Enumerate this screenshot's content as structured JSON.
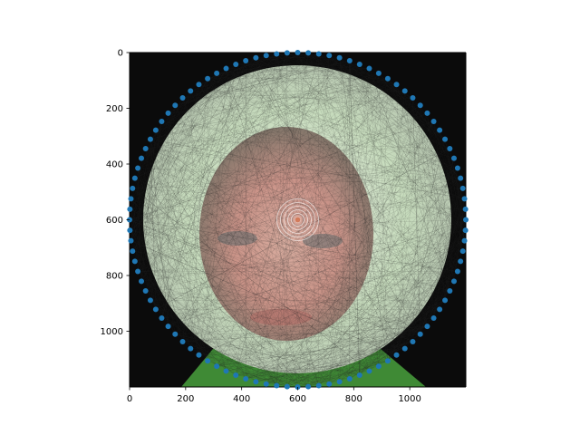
{
  "chart_data": {
    "type": "scatter",
    "title": "",
    "xlabel": "",
    "ylabel": "",
    "xlim": [
      0,
      1200
    ],
    "ylim": [
      1200,
      0
    ],
    "y_inverted": true,
    "grid": false,
    "xticks": [
      0,
      200,
      400,
      600,
      800,
      1000
    ],
    "yticks": [
      0,
      200,
      400,
      600,
      800,
      1000
    ],
    "background": "photograph of a face overlaid with a dense string-art thread mesh",
    "circle": {
      "center": [
        600,
        600
      ],
      "radius": 600
    },
    "center_point": [
      600,
      600
    ],
    "pin_count": 100,
    "marker_color": "#1f77b4",
    "thread_color": "#2b2b2b",
    "series": [
      {
        "kind": "pins",
        "marker": "circle"
      }
    ]
  }
}
